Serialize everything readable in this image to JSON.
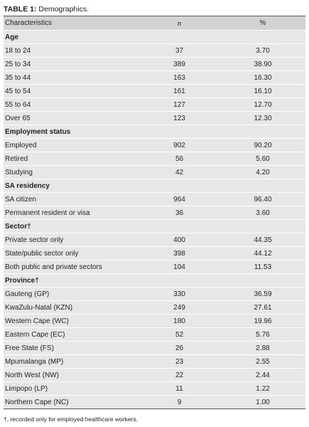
{
  "title": {
    "label": "TABLE 1:",
    "text": "Demographics."
  },
  "table": {
    "headers": [
      "Characteristics",
      "n",
      "%"
    ],
    "sections": [
      {
        "name": "Age",
        "rows": [
          [
            "18 to 24",
            "37",
            "3.70"
          ],
          [
            "25 to 34",
            "389",
            "38.90"
          ],
          [
            "35 to 44",
            "163",
            "16.30"
          ],
          [
            "45 to 54",
            "161",
            "16.10"
          ],
          [
            "55 to 64",
            "127",
            "12.70"
          ],
          [
            "Over 65",
            "123",
            "12.30"
          ]
        ]
      },
      {
        "name": "Employment status",
        "rows": [
          [
            "Employed",
            "902",
            "90.20"
          ],
          [
            "Retired",
            "56",
            "5.60"
          ],
          [
            "Studying",
            "42",
            "4.20"
          ]
        ]
      },
      {
        "name": "SA residency",
        "rows": [
          [
            "SA citizen",
            "964",
            "96.40"
          ],
          [
            "Permanent resident or visa",
            "36",
            "3.60"
          ]
        ]
      },
      {
        "name": "Sector†",
        "rows": [
          [
            "Private sector only",
            "400",
            "44.35"
          ],
          [
            "State/public sector only",
            "398",
            "44.12"
          ],
          [
            "Both public and private sectors",
            "104",
            "11.53"
          ]
        ]
      },
      {
        "name": "Province†",
        "rows": [
          [
            "Gauteng (GP)",
            "330",
            "36.59"
          ],
          [
            "KwaZulu-Natal (KZN)",
            "249",
            "27.61"
          ],
          [
            "Western Cape (WC)",
            "180",
            "19.96"
          ],
          [
            "Eastern Cape (EC)",
            "52",
            "5.76"
          ],
          [
            "Free State (FS)",
            "26",
            "2.88"
          ],
          [
            "Mpumalanga (MP)",
            "23",
            "2.55"
          ],
          [
            "North West (NW)",
            "22",
            "2.44"
          ],
          [
            "Limpopo (LP)",
            "11",
            "1.22"
          ],
          [
            "Northern Cape (NC)",
            "9",
            "1.00"
          ]
        ]
      }
    ]
  },
  "footnote": "†, recorded only for employed healthcare workers."
}
